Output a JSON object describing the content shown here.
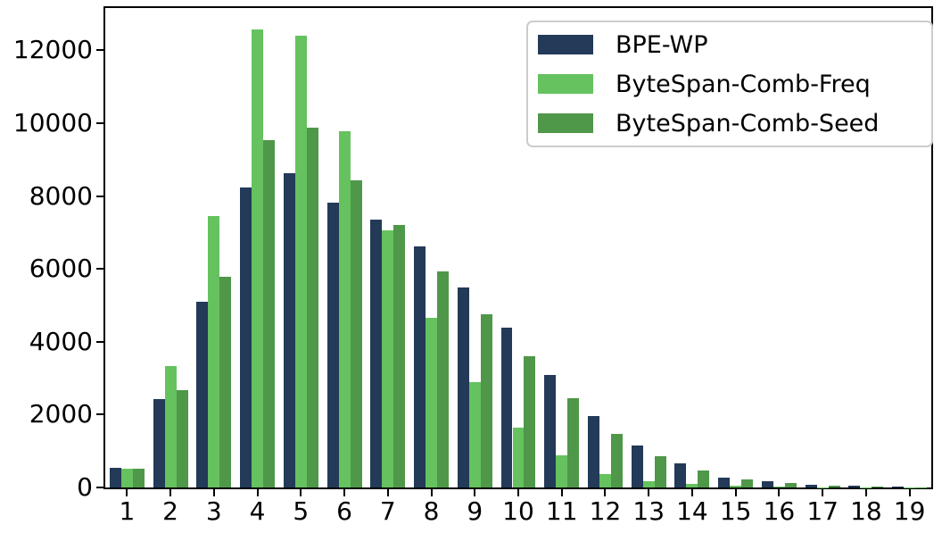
{
  "chart_data": {
    "type": "bar",
    "title": "",
    "xlabel": "",
    "ylabel": "",
    "categories": [
      "1",
      "2",
      "3",
      "4",
      "5",
      "6",
      "7",
      "8",
      "9",
      "10",
      "11",
      "12",
      "13",
      "14",
      "15",
      "16",
      "17",
      "18",
      "19"
    ],
    "series": [
      {
        "name": "BPE-WP",
        "color": "#233a58",
        "values": [
          530,
          2430,
          5100,
          8230,
          8630,
          7820,
          7350,
          6620,
          5490,
          4390,
          3090,
          1960,
          1150,
          660,
          280,
          170,
          80,
          60,
          20
        ]
      },
      {
        "name": "ByteSpan-Comb-Freq",
        "color": "#65c25f",
        "values": [
          520,
          3330,
          7450,
          12570,
          12400,
          9780,
          7060,
          4660,
          2900,
          1640,
          880,
          370,
          180,
          100,
          50,
          30,
          10,
          5,
          3
        ]
      },
      {
        "name": "ByteSpan-Comb-Seed",
        "color": "#4f9749",
        "values": [
          520,
          2670,
          5780,
          9530,
          9880,
          8430,
          7210,
          5920,
          4760,
          3610,
          2450,
          1460,
          860,
          470,
          230,
          120,
          60,
          25,
          10
        ]
      }
    ],
    "yticks": [
      0,
      2000,
      4000,
      6000,
      8000,
      10000,
      12000
    ],
    "ylim": [
      0,
      13160
    ],
    "grid": false,
    "legend_position": "upper right",
    "bar_group_width_fraction": 0.8,
    "axis_color": "#000000",
    "legend_border_color": "#cccccc"
  }
}
